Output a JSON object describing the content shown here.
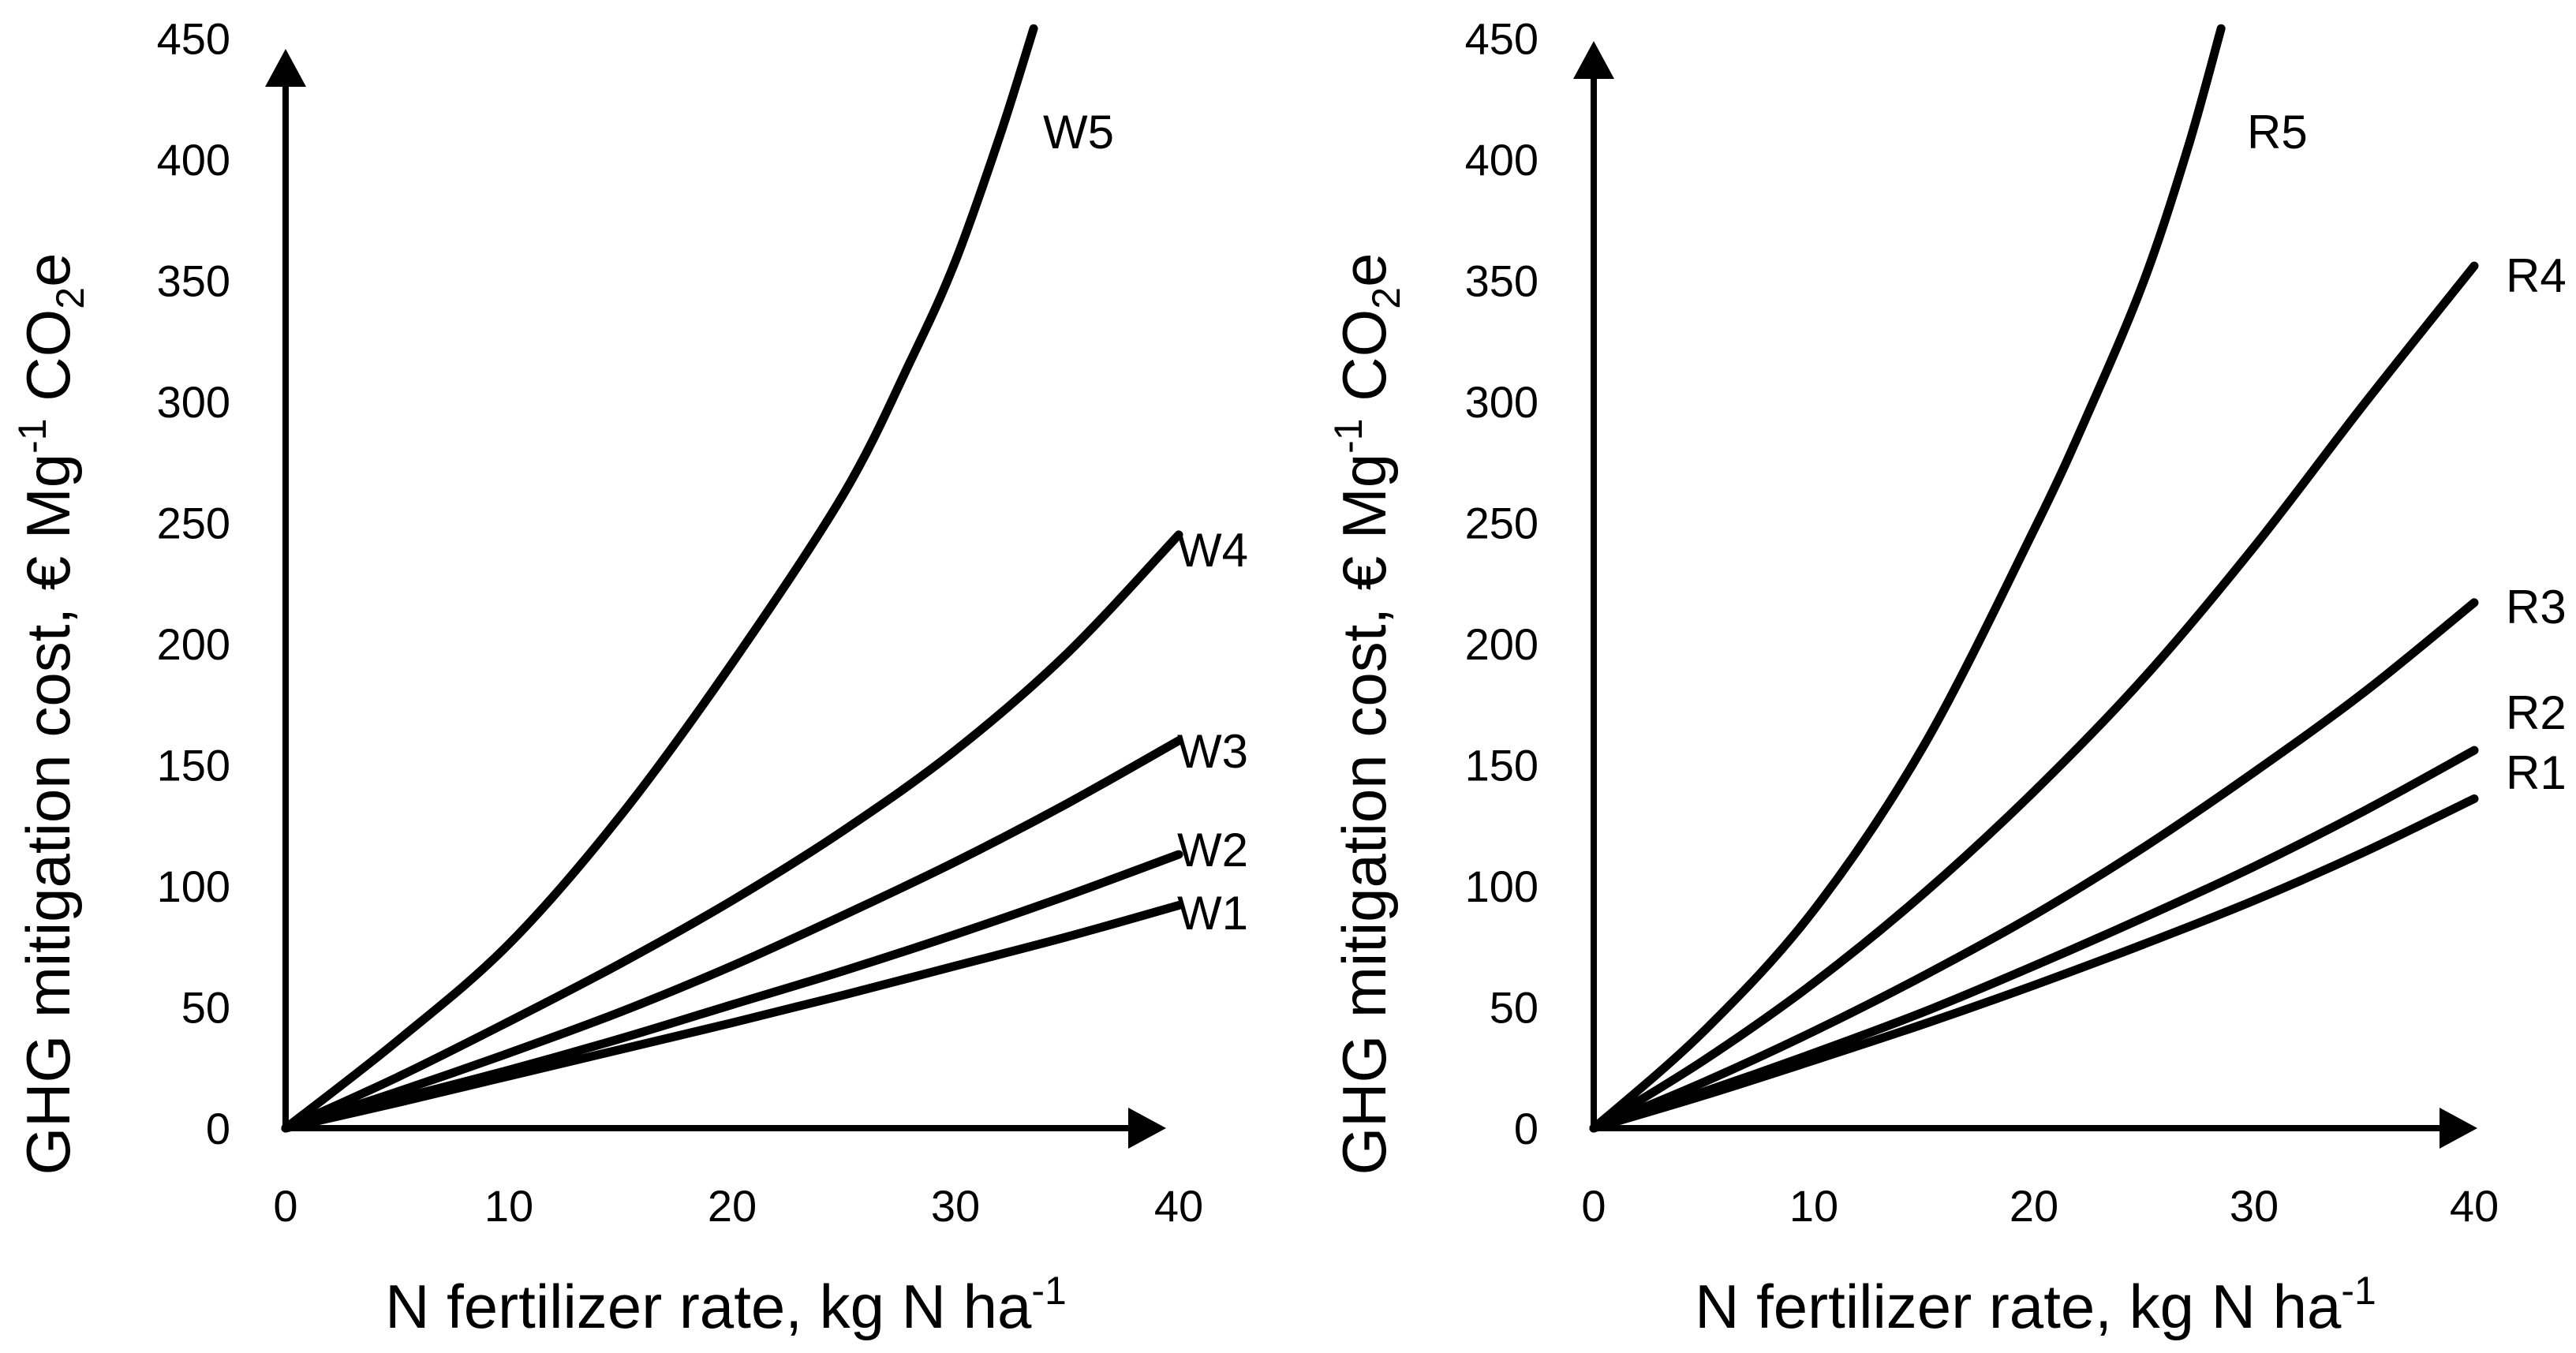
{
  "chart_data": [
    {
      "id": "left",
      "type": "line",
      "xlabel": {
        "text": "N fertilizer rate, kg N ha",
        "superscript": "-1"
      },
      "ylabel": {
        "text_before": "GHG mitigation cost,  € Mg",
        "superscript": "-1",
        "text_middle": " CO",
        "subscript": "2",
        "text_after": "e"
      },
      "xlim": [
        0,
        40
      ],
      "ylim": [
        0,
        450
      ],
      "x_ticks": [
        0,
        10,
        20,
        30,
        40
      ],
      "x_tick_labels": [
        "0",
        "10",
        "20",
        "30",
        "40"
      ],
      "y_ticks": [
        0,
        50,
        100,
        150,
        200,
        250,
        300,
        350,
        400,
        450
      ],
      "y_tick_labels": [
        "0",
        "50",
        "100",
        "150",
        "200",
        "250",
        "300",
        "350",
        "400",
        "450"
      ],
      "series": [
        {
          "name": "W1",
          "x": [
            0,
            5,
            10,
            15,
            20,
            25,
            30,
            35,
            40
          ],
          "values": [
            0,
            10.5,
            21.5,
            32.5,
            43.5,
            55,
            67,
            79,
            92
          ]
        },
        {
          "name": "W2",
          "x": [
            0,
            5,
            10,
            15,
            20,
            25,
            30,
            35,
            40
          ],
          "values": [
            0,
            12,
            24,
            37,
            51,
            65,
            80,
            96,
            113
          ]
        },
        {
          "name": "W3",
          "x": [
            0,
            5,
            10,
            15,
            20,
            25,
            30,
            35,
            40
          ],
          "values": [
            0,
            15,
            31,
            48,
            67,
            88,
            110,
            134,
            160
          ]
        },
        {
          "name": "W4",
          "x": [
            0,
            5,
            10,
            15,
            20,
            25,
            30,
            35,
            40
          ],
          "values": [
            0,
            21,
            44,
            68,
            94,
            123,
            156,
            196,
            245
          ]
        },
        {
          "name": "W5",
          "x": [
            0,
            5,
            10,
            15,
            20,
            25,
            28,
            30,
            32,
            33.5
          ],
          "values": [
            0,
            36,
            76,
            129,
            192,
            262,
            317,
            358,
            410,
            454
          ]
        }
      ]
    },
    {
      "id": "right",
      "type": "line",
      "xlabel": {
        "text": "N fertilizer rate, kg N ha",
        "superscript": "-1"
      },
      "ylabel": {
        "text_before": "GHG mitigation cost,  € Mg",
        "superscript": "-1",
        "text_middle": " CO",
        "subscript": "2",
        "text_after": "e"
      },
      "xlim": [
        0,
        40
      ],
      "ylim": [
        0,
        450
      ],
      "x_ticks": [
        0,
        10,
        20,
        30,
        40
      ],
      "x_tick_labels": [
        "0",
        "10",
        "20",
        "30",
        "40"
      ],
      "y_ticks": [
        0,
        50,
        100,
        150,
        200,
        250,
        300,
        350,
        400,
        450
      ],
      "y_tick_labels": [
        "0",
        "50",
        "100",
        "150",
        "200",
        "250",
        "300",
        "350",
        "400",
        "450"
      ],
      "series": [
        {
          "name": "R1",
          "x": [
            0,
            5,
            10,
            15,
            20,
            25,
            30,
            35,
            40
          ],
          "values": [
            0,
            13.5,
            28,
            43,
            59,
            76,
            94,
            114,
            136
          ]
        },
        {
          "name": "R2",
          "x": [
            0,
            5,
            10,
            15,
            20,
            25,
            30,
            35,
            40
          ],
          "values": [
            0,
            15,
            31,
            48,
            67,
            87,
            108,
            131,
            156
          ]
        },
        {
          "name": "R3",
          "x": [
            0,
            5,
            10,
            15,
            20,
            25,
            30,
            35,
            40
          ],
          "values": [
            0,
            19,
            40,
            63,
            88,
            116,
            147,
            180,
            217
          ]
        },
        {
          "name": "R4",
          "x": [
            0,
            5,
            10,
            15,
            20,
            25,
            30,
            35,
            40
          ],
          "values": [
            0,
            28,
            60,
            97,
            139,
            186,
            240,
            299,
            356
          ]
        },
        {
          "name": "R5",
          "x": [
            0,
            5,
            10,
            15,
            20,
            22.5,
            25,
            27,
            28.5
          ],
          "values": [
            0,
            40,
            90,
            158,
            247,
            296,
            350,
            405,
            454
          ]
        }
      ]
    }
  ]
}
